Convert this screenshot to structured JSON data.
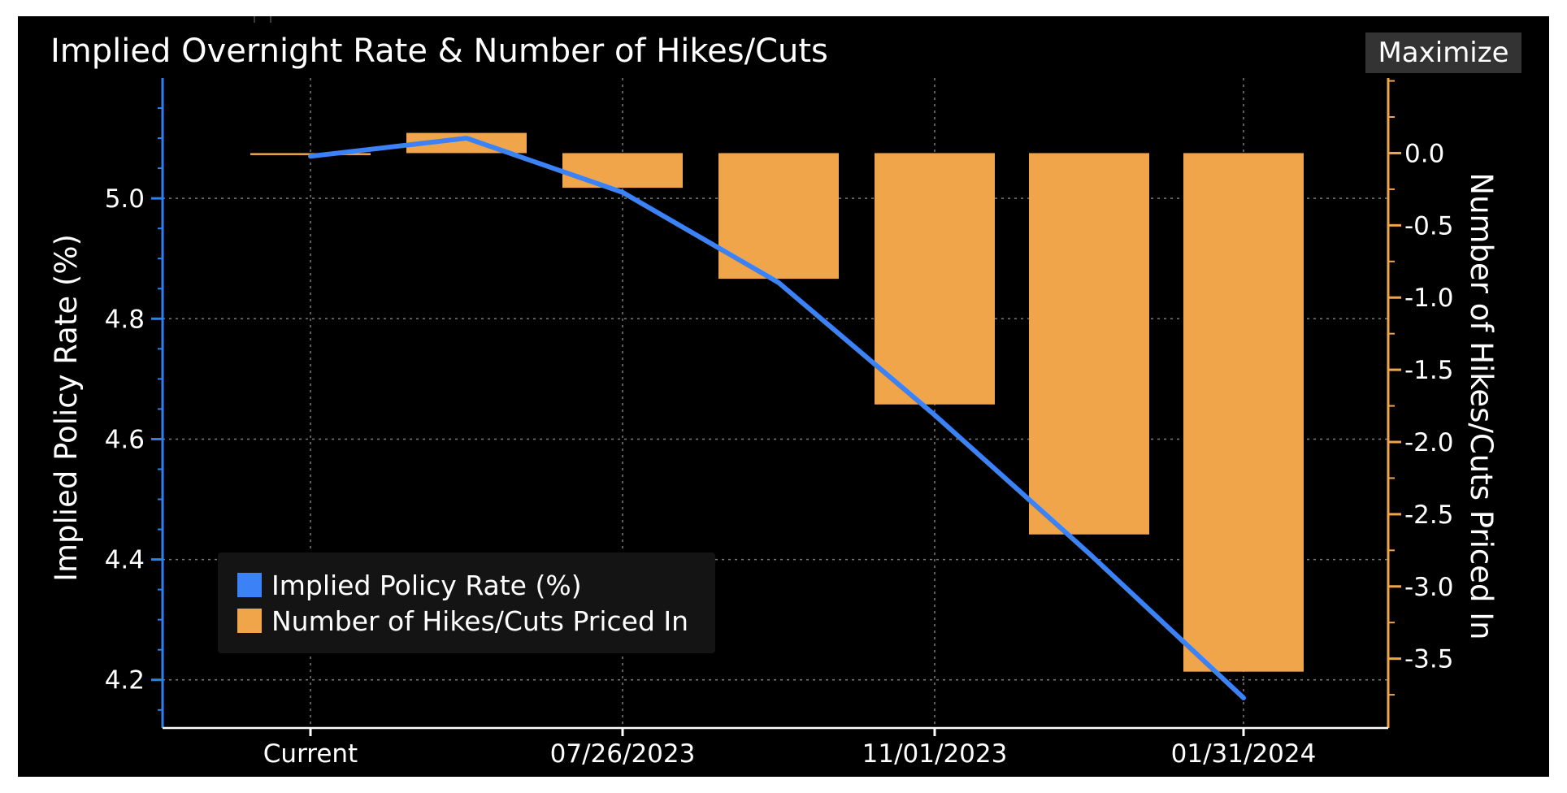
{
  "header": {
    "title": "Implied Overnight Rate & Number of Hikes/Cuts",
    "maximize_label": "Maximize"
  },
  "colors": {
    "background": "#000000",
    "line": "#3b82f6",
    "bars": "#f0a54a",
    "left_axis": "#2f80ed",
    "right_axis": "#f0a54a",
    "grid": "#7a7a7a"
  },
  "legend": {
    "items": [
      {
        "label": "Implied Policy Rate (%)",
        "color": "#3b82f6"
      },
      {
        "label": "Number of Hikes/Cuts Priced In",
        "color": "#f0a54a"
      }
    ]
  },
  "chart_data": {
    "type": "bar+line",
    "title": "Implied Overnight Rate & Number of Hikes/Cuts",
    "x": [
      "Current",
      "",
      "07/26/2023",
      "",
      "11/01/2023",
      "",
      "01/31/2024"
    ],
    "x_tick_labels": [
      "Current",
      "07/26/2023",
      "11/01/2023",
      "01/31/2024"
    ],
    "y_left": {
      "label": "Implied Policy Rate (%)",
      "range": [
        4.12,
        5.2
      ],
      "ticks": [
        "4.2",
        "4.4",
        "4.6",
        "4.8",
        "5.0"
      ]
    },
    "y_right": {
      "label": "Number of Hikes/Cuts Priced In",
      "range": [
        -3.98,
        0.52
      ],
      "ticks": [
        "0.0",
        "-0.5",
        "-1.0",
        "-1.5",
        "-2.0",
        "-2.5",
        "-3.0",
        "-3.5"
      ]
    },
    "grid": true,
    "legend_position": "bottom-left",
    "series": [
      {
        "name": "Implied Policy Rate (%)",
        "type": "line",
        "axis": "left",
        "values": [
          5.07,
          5.1,
          5.01,
          4.86,
          4.64,
          4.41,
          4.17
        ]
      },
      {
        "name": "Number of Hikes/Cuts Priced In",
        "type": "bar",
        "axis": "right",
        "values": [
          0.0,
          0.14,
          -0.24,
          -0.87,
          -1.74,
          -2.64,
          -3.59
        ]
      }
    ]
  }
}
